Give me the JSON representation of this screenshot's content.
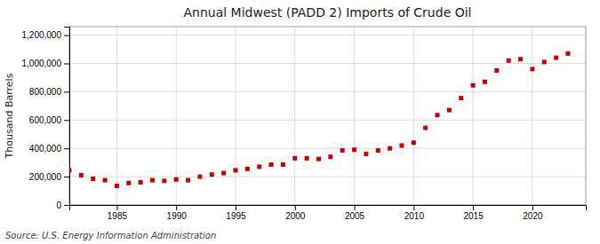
{
  "chart_data": {
    "type": "scatter",
    "title": "Annual Midwest (PADD 2) Imports of Crude Oil",
    "y_label": "Thousand Barrels",
    "source": "Source: U.S. Energy Information Administration",
    "x": [
      1981,
      1982,
      1983,
      1984,
      1985,
      1986,
      1987,
      1988,
      1989,
      1990,
      1991,
      1992,
      1993,
      1994,
      1995,
      1996,
      1997,
      1998,
      1999,
      2000,
      2001,
      2002,
      2003,
      2004,
      2005,
      2006,
      2007,
      2008,
      2009,
      2010,
      2011,
      2012,
      2013,
      2014,
      2015,
      2016,
      2017,
      2018,
      2019,
      2020,
      2021,
      2022,
      2023
    ],
    "values": [
      245000,
      210000,
      185000,
      175000,
      135000,
      155000,
      160000,
      175000,
      170000,
      180000,
      175000,
      200000,
      215000,
      225000,
      245000,
      255000,
      270000,
      285000,
      285000,
      330000,
      330000,
      325000,
      340000,
      385000,
      390000,
      360000,
      385000,
      400000,
      420000,
      440000,
      545000,
      635000,
      670000,
      755000,
      845000,
      870000,
      950000,
      1020000,
      1030000,
      960000,
      1010000,
      1040000,
      1070000
    ],
    "color": "#cc0000",
    "marker": "square",
    "xlim": [
      1981,
      2024.5
    ],
    "ylim": [
      0,
      1260000
    ],
    "xticks": [
      1985,
      1990,
      1995,
      2000,
      2005,
      2010,
      2015,
      2020
    ],
    "yticks": [
      0,
      {
        "value": 200000,
        "label": "200,000"
      },
      {
        "value": 400000,
        "label": "400,000"
      },
      {
        "value": 600000,
        "label": "600,000"
      },
      {
        "value": 800000,
        "label": "800,000"
      },
      {
        "value": 1000000,
        "label": "1,000,000"
      },
      {
        "value": 1200000,
        "label": "1,200,000"
      }
    ],
    "grid": true
  }
}
